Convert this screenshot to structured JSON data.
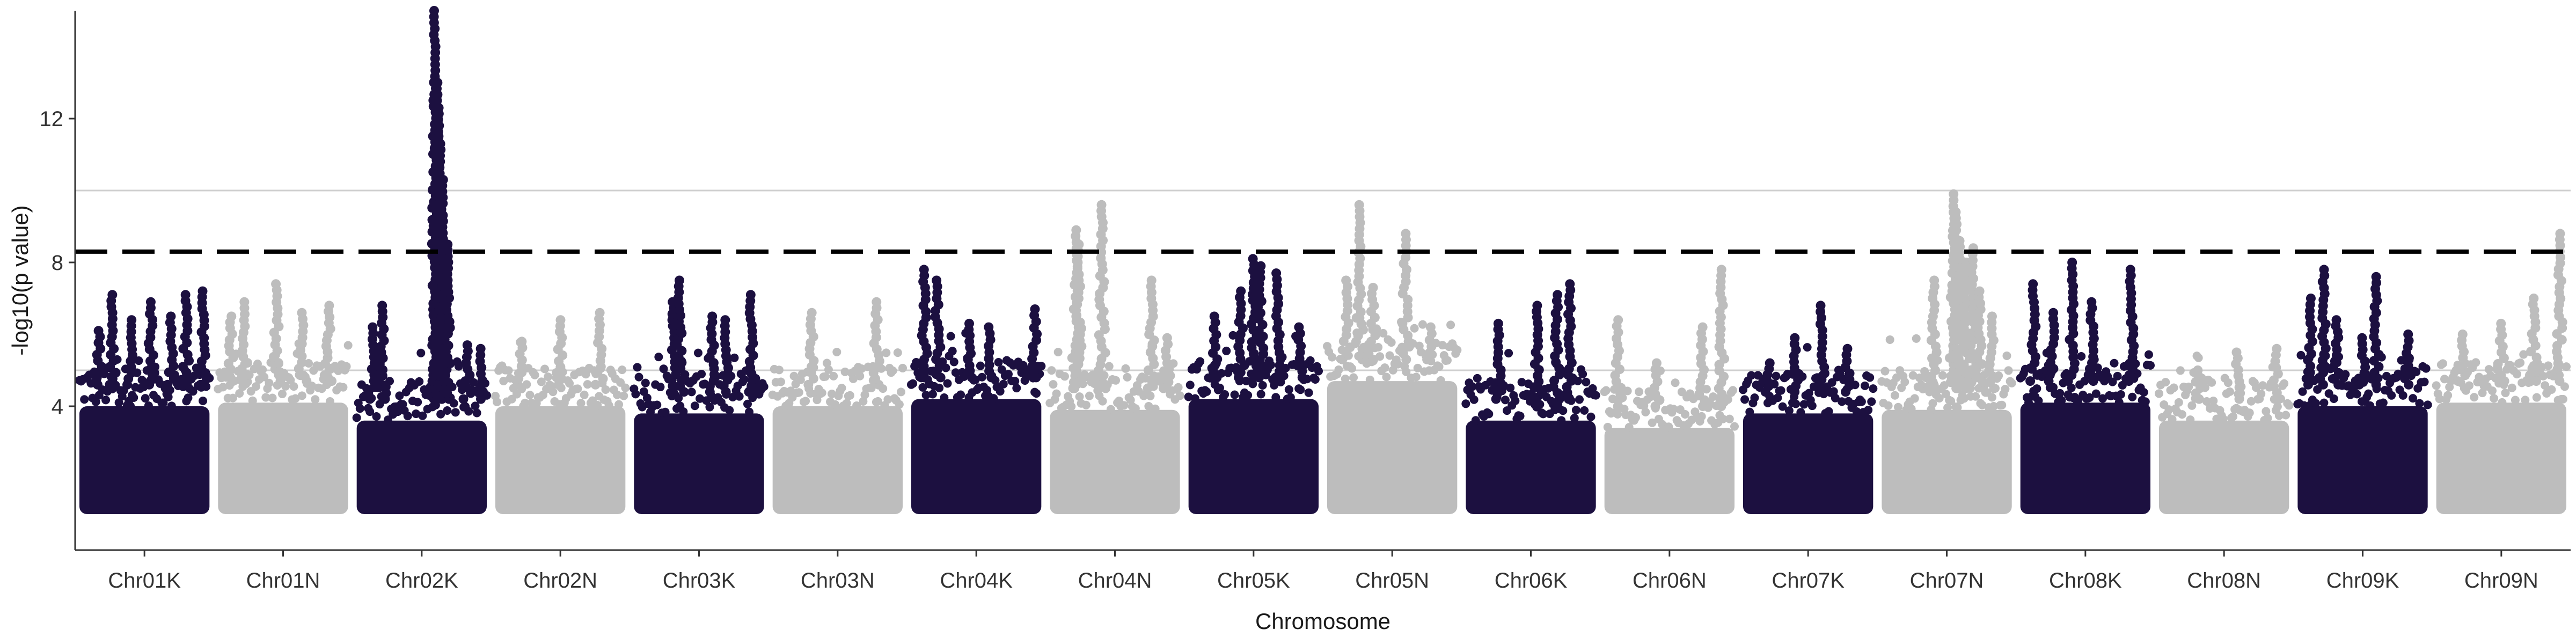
{
  "chart_data": {
    "type": "scatter",
    "subtype": "manhattan",
    "title": "",
    "xlabel": "Chromosome",
    "ylabel": "-log10(p value)",
    "ylim": [
      0,
      15
    ],
    "y_ticks": [
      4,
      8,
      12
    ],
    "categories": [
      "Chr01K",
      "Chr01N",
      "Chr02K",
      "Chr02N",
      "Chr03K",
      "Chr03N",
      "Chr04K",
      "Chr04N",
      "Chr05K",
      "Chr05N",
      "Chr06K",
      "Chr06N",
      "Chr07K",
      "Chr07N",
      "Chr08K",
      "Chr08N",
      "Chr09K",
      "Chr09N"
    ],
    "colors": {
      "K": "#1c1040",
      "N": "#bdbdbd"
    },
    "reference_lines": [
      {
        "y": 8.3,
        "style": "dashed",
        "color": "#000000"
      },
      {
        "y": 10.0,
        "style": "solid",
        "color": "#cfcfcf"
      },
      {
        "y": 5.0,
        "style": "solid",
        "color": "#cfcfcf"
      }
    ],
    "series": [
      {
        "chromosome": "Chr01K",
        "min": 1.0,
        "base_top": 4.6,
        "peaks": [
          [
            0.15,
            6.1
          ],
          [
            0.25,
            7.1
          ],
          [
            0.4,
            6.4
          ],
          [
            0.55,
            6.9
          ],
          [
            0.7,
            6.5
          ],
          [
            0.82,
            7.1
          ],
          [
            0.95,
            7.2
          ]
        ]
      },
      {
        "chromosome": "Chr01N",
        "min": 1.0,
        "base_top": 4.7,
        "peaks": [
          [
            0.1,
            6.5
          ],
          [
            0.2,
            6.9
          ],
          [
            0.45,
            7.4
          ],
          [
            0.65,
            6.6
          ],
          [
            0.85,
            6.8
          ]
        ]
      },
      {
        "chromosome": "Chr02K",
        "min": 1.0,
        "base_top": 4.2,
        "peaks": [
          [
            0.12,
            6.2
          ],
          [
            0.2,
            6.8
          ],
          [
            0.6,
            15.0
          ],
          [
            0.62,
            13.0
          ],
          [
            0.63,
            12.3
          ],
          [
            0.64,
            11.3
          ],
          [
            0.66,
            10.3
          ],
          [
            0.7,
            8.5
          ],
          [
            0.85,
            5.7
          ],
          [
            0.95,
            5.6
          ]
        ]
      },
      {
        "chromosome": "Chr02N",
        "min": 1.0,
        "base_top": 4.6,
        "peaks": [
          [
            0.2,
            5.8
          ],
          [
            0.5,
            6.4
          ],
          [
            0.8,
            6.6
          ]
        ]
      },
      {
        "chromosome": "Chr03K",
        "min": 1.0,
        "base_top": 4.4,
        "peaks": [
          [
            0.3,
            6.9
          ],
          [
            0.35,
            7.5
          ],
          [
            0.6,
            6.5
          ],
          [
            0.7,
            6.4
          ],
          [
            0.9,
            7.1
          ]
        ]
      },
      {
        "chromosome": "Chr03N",
        "min": 1.0,
        "base_top": 4.6,
        "peaks": [
          [
            0.3,
            6.6
          ],
          [
            0.8,
            6.9
          ]
        ]
      },
      {
        "chromosome": "Chr04K",
        "min": 1.0,
        "base_top": 4.8,
        "peaks": [
          [
            0.1,
            7.8
          ],
          [
            0.2,
            7.5
          ],
          [
            0.45,
            6.3
          ],
          [
            0.6,
            6.2
          ],
          [
            0.95,
            6.7
          ]
        ]
      },
      {
        "chromosome": "Chr04N",
        "min": 1.0,
        "base_top": 4.5,
        "peaks": [
          [
            0.2,
            8.9
          ],
          [
            0.22,
            8.5
          ],
          [
            0.4,
            9.6
          ],
          [
            0.78,
            7.5
          ],
          [
            0.9,
            5.9
          ]
        ]
      },
      {
        "chromosome": "Chr05K",
        "min": 1.0,
        "base_top": 4.8,
        "peaks": [
          [
            0.2,
            6.5
          ],
          [
            0.4,
            7.2
          ],
          [
            0.5,
            8.1
          ],
          [
            0.55,
            7.9
          ],
          [
            0.68,
            7.7
          ],
          [
            0.85,
            6.2
          ]
        ]
      },
      {
        "chromosome": "Chr05N",
        "min": 1.0,
        "base_top": 5.3,
        "peaks": [
          [
            0.15,
            7.5
          ],
          [
            0.25,
            9.6
          ],
          [
            0.35,
            7.3
          ],
          [
            0.6,
            8.8
          ],
          [
            0.8,
            6.2
          ]
        ]
      },
      {
        "chromosome": "Chr06K",
        "min": 1.0,
        "base_top": 4.2,
        "peaks": [
          [
            0.25,
            6.3
          ],
          [
            0.55,
            6.8
          ],
          [
            0.7,
            7.1
          ],
          [
            0.8,
            7.4
          ]
        ]
      },
      {
        "chromosome": "Chr06N",
        "min": 1.0,
        "base_top": 4.0,
        "peaks": [
          [
            0.1,
            6.4
          ],
          [
            0.4,
            5.2
          ],
          [
            0.75,
            6.2
          ],
          [
            0.9,
            7.8
          ]
        ]
      },
      {
        "chromosome": "Chr07K",
        "min": 1.0,
        "base_top": 4.4,
        "peaks": [
          [
            0.2,
            5.2
          ],
          [
            0.4,
            5.9
          ],
          [
            0.6,
            6.8
          ],
          [
            0.8,
            5.6
          ]
        ]
      },
      {
        "chromosome": "Chr07N",
        "min": 1.0,
        "base_top": 4.5,
        "peaks": [
          [
            0.4,
            7.5
          ],
          [
            0.55,
            9.9
          ],
          [
            0.57,
            9.4
          ],
          [
            0.6,
            8.6
          ],
          [
            0.65,
            8.0
          ],
          [
            0.7,
            8.4
          ],
          [
            0.75,
            7.2
          ],
          [
            0.85,
            6.5
          ]
        ]
      },
      {
        "chromosome": "Chr08K",
        "min": 1.0,
        "base_top": 4.7,
        "peaks": [
          [
            0.1,
            7.4
          ],
          [
            0.25,
            6.6
          ],
          [
            0.4,
            8.0
          ],
          [
            0.55,
            6.9
          ],
          [
            0.85,
            7.8
          ]
        ]
      },
      {
        "chromosome": "Chr08N",
        "min": 1.0,
        "base_top": 4.2,
        "peaks": [
          [
            0.3,
            5.0
          ],
          [
            0.6,
            5.5
          ],
          [
            0.9,
            5.6
          ]
        ]
      },
      {
        "chromosome": "Chr09K",
        "min": 1.0,
        "base_top": 4.6,
        "peaks": [
          [
            0.1,
            7.0
          ],
          [
            0.2,
            7.8
          ],
          [
            0.3,
            6.4
          ],
          [
            0.5,
            5.9
          ],
          [
            0.6,
            7.6
          ],
          [
            0.85,
            6.0
          ]
        ]
      },
      {
        "chromosome": "Chr09N",
        "min": 1.0,
        "base_top": 4.7,
        "peaks": [
          [
            0.2,
            6.0
          ],
          [
            0.5,
            6.3
          ],
          [
            0.75,
            7.0
          ],
          [
            0.95,
            8.8
          ]
        ]
      }
    ]
  }
}
